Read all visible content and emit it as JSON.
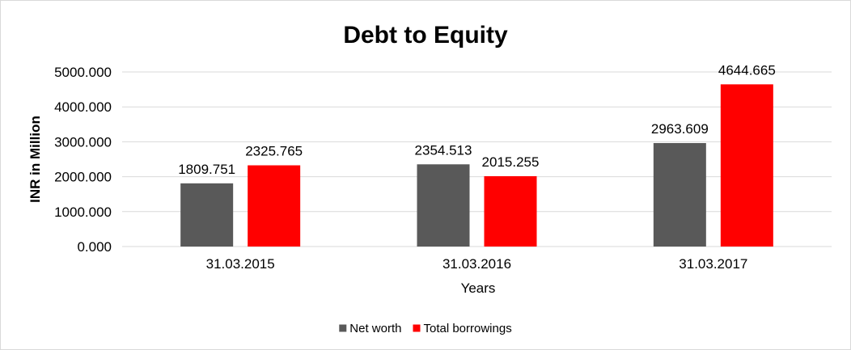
{
  "chart_data": {
    "type": "bar",
    "title": "Debt to Equity",
    "xlabel": "Years",
    "ylabel": "INR in Million",
    "categories": [
      "31.03.2015",
      "31.03.2016",
      "31.03.2017"
    ],
    "series": [
      {
        "name": "Net worth",
        "values": [
          1809.751,
          2354.513,
          2963.609
        ],
        "labels": [
          "1809.751",
          "2354.513",
          "2963.609"
        ],
        "color": "#595959"
      },
      {
        "name": "Total borrowings",
        "values": [
          2325.765,
          2015.255,
          4644.665
        ],
        "labels": [
          "2325.765",
          "2015.255",
          "4644.665"
        ],
        "color": "#ff0000"
      }
    ],
    "ylim": [
      0,
      5000
    ],
    "yticks": [
      "0.000",
      "1000.000",
      "2000.000",
      "3000.000",
      "4000.000",
      "5000.000"
    ],
    "grid": true,
    "legend": "bottom"
  }
}
